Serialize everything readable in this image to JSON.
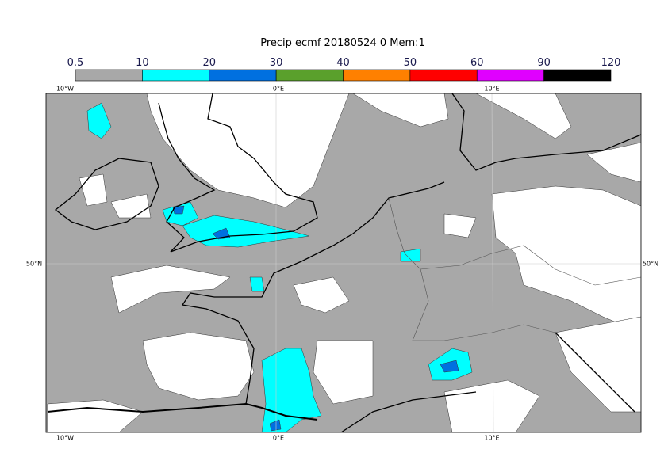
{
  "title": "Precip ecmf 20180524 0 Mem:1",
  "colorbar": {
    "ticks": [
      0.5,
      10,
      20,
      30,
      40,
      50,
      60,
      90,
      120
    ],
    "colors": [
      "#a8a8a8",
      "#00ffff",
      "#0070e0",
      "#5aa02c",
      "#ff8000",
      "#ff0000",
      "#e000ff",
      "#000000"
    ]
  },
  "axes": {
    "top": [
      "10°W",
      "0°E",
      "10°E"
    ],
    "bottom": [
      "10°W",
      "0°E",
      "10°E"
    ],
    "left": "50°N",
    "right": "50°N"
  }
}
